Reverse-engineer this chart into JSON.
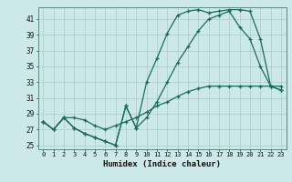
{
  "xlabel": "Humidex (Indice chaleur)",
  "ylabel": "",
  "bg_color": "#cce8e8",
  "grid_color": "#aacccc",
  "line_color": "#1a6b5a",
  "ylim": [
    24.5,
    42.5
  ],
  "xlim": [
    -0.5,
    23.5
  ],
  "yticks": [
    25,
    27,
    29,
    31,
    33,
    35,
    37,
    39,
    41
  ],
  "xticks": [
    0,
    1,
    2,
    3,
    4,
    5,
    6,
    7,
    8,
    9,
    10,
    11,
    12,
    13,
    14,
    15,
    16,
    17,
    18,
    19,
    20,
    21,
    22,
    23
  ],
  "line1_x": [
    0,
    1,
    2,
    3,
    4,
    5,
    6,
    7,
    8,
    9,
    10,
    11,
    12,
    13,
    14,
    15,
    16,
    17,
    18,
    19,
    20,
    21,
    22,
    23
  ],
  "line1_y": [
    28.0,
    27.0,
    28.5,
    27.2,
    26.5,
    26.0,
    25.5,
    25.0,
    30.0,
    27.2,
    33.0,
    36.0,
    39.2,
    41.5,
    42.0,
    42.2,
    41.8,
    42.0,
    42.2,
    42.2,
    42.0,
    38.5,
    32.5,
    32.0
  ],
  "line2_x": [
    0,
    1,
    2,
    3,
    4,
    5,
    6,
    7,
    8,
    9,
    10,
    11,
    12,
    13,
    14,
    15,
    16,
    17,
    18,
    19,
    20,
    21,
    22,
    23
  ],
  "line2_y": [
    28.0,
    27.0,
    28.5,
    27.2,
    26.5,
    26.0,
    25.5,
    25.0,
    30.0,
    27.2,
    28.5,
    30.5,
    33.0,
    35.5,
    37.5,
    39.5,
    41.0,
    41.5,
    42.0,
    40.0,
    38.5,
    35.0,
    32.5,
    32.0
  ],
  "line3_x": [
    0,
    1,
    2,
    3,
    4,
    5,
    6,
    7,
    8,
    9,
    10,
    11,
    12,
    13,
    14,
    15,
    16,
    17,
    18,
    19,
    20,
    21,
    22,
    23
  ],
  "line3_y": [
    28.0,
    27.0,
    28.5,
    28.5,
    28.2,
    27.5,
    27.0,
    27.5,
    28.0,
    28.5,
    29.2,
    30.0,
    30.5,
    31.2,
    31.8,
    32.2,
    32.5,
    32.5,
    32.5,
    32.5,
    32.5,
    32.5,
    32.5,
    32.5
  ]
}
